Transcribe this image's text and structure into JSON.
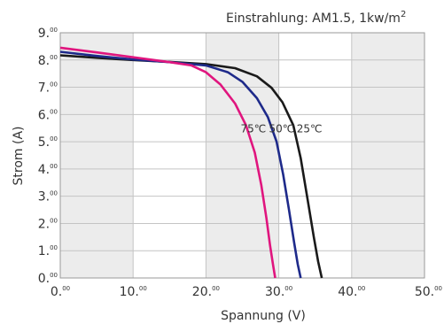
{
  "chart_data": {
    "type": "line",
    "annotation": {
      "text": "Einstrahlung: AM1.5, 1kw/m",
      "superscript": "2"
    },
    "xlabel": "Spannung (V)",
    "ylabel": "Strom (A)",
    "xlim": [
      0,
      50
    ],
    "ylim": [
      0,
      9
    ],
    "x_ticks": [
      {
        "value": 0,
        "main": "0.",
        "sup": "00"
      },
      {
        "value": 10,
        "main": "10.",
        "sup": "00"
      },
      {
        "value": 20,
        "main": "20.",
        "sup": "00"
      },
      {
        "value": 30,
        "main": "30.",
        "sup": "00"
      },
      {
        "value": 40,
        "main": "40.",
        "sup": "00"
      },
      {
        "value": 50,
        "main": "50.",
        "sup": "00"
      }
    ],
    "y_ticks": [
      {
        "value": 0,
        "main": "0.",
        "sup": "00"
      },
      {
        "value": 1,
        "main": "1.",
        "sup": "00"
      },
      {
        "value": 2,
        "main": "2.",
        "sup": "00"
      },
      {
        "value": 3,
        "main": "3.",
        "sup": "00"
      },
      {
        "value": 4,
        "main": "4.",
        "sup": "00"
      },
      {
        "value": 5,
        "main": "5.",
        "sup": "00"
      },
      {
        "value": 6,
        "main": "6.",
        "sup": "00"
      },
      {
        "value": 7,
        "main": "7.",
        "sup": "00"
      },
      {
        "value": 8,
        "main": "8.",
        "sup": "00"
      },
      {
        "value": 9,
        "main": "9.",
        "sup": "00"
      }
    ],
    "shaded_bands_x": [
      [
        0,
        10
      ],
      [
        20,
        30
      ],
      [
        40,
        50
      ]
    ],
    "grid": true,
    "series": [
      {
        "name": "25℃",
        "color": "#1a1a1a",
        "x": [
          0,
          5,
          10,
          15,
          20,
          24,
          27,
          29,
          30.5,
          32,
          33,
          34,
          34.8,
          35.4,
          35.9
        ],
        "y": [
          8.17,
          8.08,
          8.0,
          7.93,
          7.85,
          7.7,
          7.4,
          6.98,
          6.45,
          5.6,
          4.4,
          2.8,
          1.5,
          0.6,
          0
        ]
      },
      {
        "name": "50℃",
        "color": "#1e2a8a",
        "x": [
          0,
          5,
          10,
          15,
          20,
          23,
          25,
          27,
          28.5,
          29.7,
          30.6,
          31.4,
          32.1,
          32.6,
          33.0
        ],
        "y": [
          8.3,
          8.15,
          8.02,
          7.92,
          7.8,
          7.55,
          7.2,
          6.6,
          5.9,
          5.0,
          3.8,
          2.5,
          1.3,
          0.5,
          0
        ]
      },
      {
        "name": "75℃",
        "color": "#e0157e",
        "x": [
          0,
          5,
          10,
          15,
          18,
          20,
          22,
          24,
          25.5,
          26.7,
          27.6,
          28.3,
          28.8,
          29.2,
          29.5
        ],
        "y": [
          8.45,
          8.28,
          8.1,
          7.92,
          7.8,
          7.55,
          7.1,
          6.4,
          5.6,
          4.6,
          3.4,
          2.2,
          1.2,
          0.5,
          0
        ]
      }
    ],
    "curve_labels": [
      {
        "text": "75℃",
        "x": 26.5,
        "y": 5.35
      },
      {
        "text": "50℃",
        "x": 30.4,
        "y": 5.35
      },
      {
        "text": "25℃",
        "x": 34.2,
        "y": 5.35
      }
    ]
  }
}
